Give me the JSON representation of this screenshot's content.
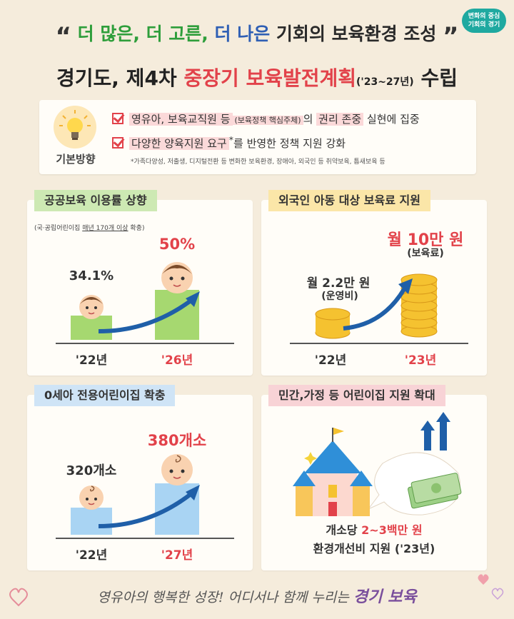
{
  "badge": {
    "line1": "변화의 중심",
    "line2": "기회의 경기"
  },
  "headline": {
    "quote_open": "“",
    "part1": "더 많은,",
    "part2": "더 고른,",
    "part3": "더 나은",
    "part4": "기회",
    "part5": "의 보육환경 조성",
    "quote_close": "”"
  },
  "title": {
    "part1": "경기도, 제4차",
    "part2": "중장기 보육발전계획",
    "period": "('23~27년)",
    "part3": "수립"
  },
  "direction": {
    "label": "기본방향",
    "item1": {
      "a": "영유아, 보육교직원 등",
      "b": "(보육정책 핵심주체)",
      "c": "의",
      "d": "권리 존중",
      "e": "실현에 집중"
    },
    "item2": {
      "a": "다양한 양육지원 요구",
      "star": "*",
      "b": "를 반영한 정책 지원 강화"
    },
    "note": "*가족다양성, 저출생, 디지털전환 등 변화한 보육환경, 장애아, 외국인 등 취약보육, 틈새보육 등"
  },
  "panel1": {
    "title": "공공보육 이용률 상향",
    "sub_a": "(국·공립어린이집",
    "sub_b": "매년 170개 이상",
    "sub_c": "확충)",
    "chart_data": {
      "type": "bar",
      "categories": [
        "'22년",
        "'26년"
      ],
      "values": [
        34.1,
        50
      ],
      "value_labels": [
        "34.1%",
        "50%"
      ]
    }
  },
  "panel2": {
    "title": "외국인 아동 대상 보육료 지원",
    "v1_line1": "월 2.2만 원",
    "v1_line2": "(운영비)",
    "v2_line1": "월 10만 원",
    "v2_line2": "(보육료)",
    "year1": "'22년",
    "year2": "'23년"
  },
  "panel3": {
    "title": "0세아 전용어린이집 확충",
    "chart_data": {
      "type": "bar",
      "categories": [
        "'22년",
        "'27년"
      ],
      "values": [
        320,
        380
      ],
      "value_labels": [
        "320개소",
        "380개소"
      ]
    }
  },
  "panel4": {
    "title": "민간,가정 등 어린이집 지원 확대",
    "cap_a": "개소당",
    "cap_b": "2~3백만 원",
    "cap_c": "환경개선비 지원 ('23년)"
  },
  "footer": {
    "a": "영유아의 행복한 성장! 어디서나 함께 누리는",
    "b": "경기 보육"
  },
  "colors": {
    "red": "#e2424a",
    "green": "#2e9e3b",
    "blue": "#2f5fb4",
    "bar_green": "#a6d870",
    "bar_blue": "#a9d4f3",
    "arrow": "#1f5fa8"
  }
}
